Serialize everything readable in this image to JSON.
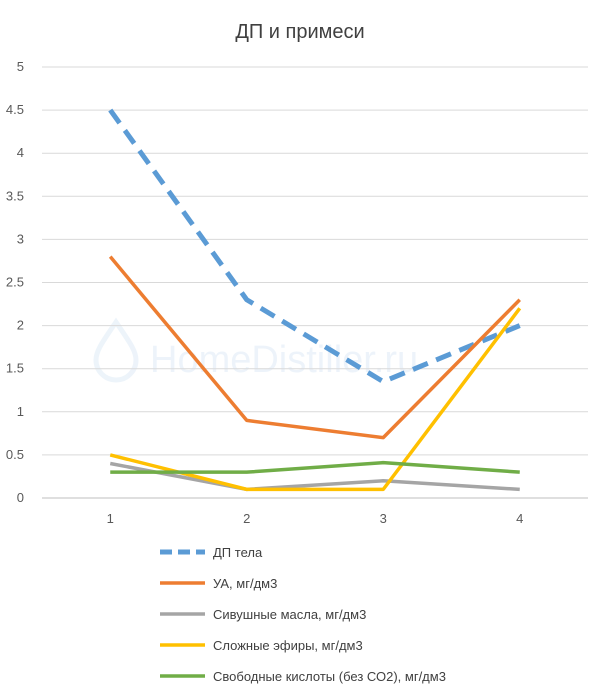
{
  "chart_data": {
    "type": "line",
    "title": "ДП и примеси",
    "x": [
      1,
      2,
      3,
      4
    ],
    "ylim": [
      0,
      5
    ],
    "y_ticks": [
      "0",
      "0.5",
      "1",
      "1.5",
      "2",
      "2.5",
      "3",
      "3.5",
      "4",
      "4.5",
      "5"
    ],
    "x_ticks": [
      "1",
      "2",
      "3",
      "4"
    ],
    "grid": true,
    "legend_position": "bottom",
    "series": [
      {
        "name": "ДП тела",
        "values": [
          4.5,
          2.3,
          1.35,
          2.0
        ],
        "color": "#5b9bd5",
        "dashed": true
      },
      {
        "name": "УА, мг/дм3",
        "values": [
          2.8,
          0.9,
          0.7,
          2.3
        ],
        "color": "#ed7d31",
        "dashed": false
      },
      {
        "name": "Сивушные масла, мг/дм3",
        "values": [
          0.4,
          0.1,
          0.2,
          0.1
        ],
        "color": "#a5a5a5",
        "dashed": false
      },
      {
        "name": "Сложные эфиры, мг/дм3",
        "values": [
          0.5,
          0.1,
          0.1,
          2.2
        ],
        "color": "#ffc000",
        "dashed": false
      },
      {
        "name": "Свободные кислоты (без СО2), мг/дм3",
        "values": [
          0.3,
          0.3,
          0.41,
          0.3
        ],
        "color": "#70ad47",
        "dashed": false
      }
    ]
  },
  "watermark": {
    "text": "HomeDistiller.ru"
  }
}
